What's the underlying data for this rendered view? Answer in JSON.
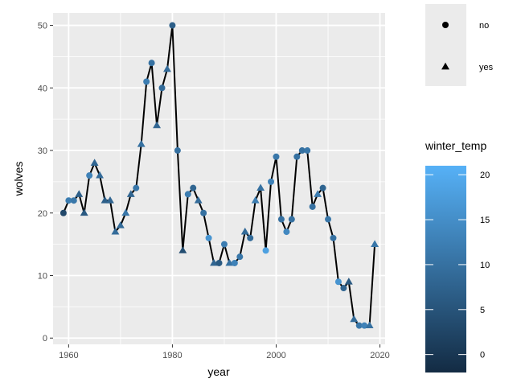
{
  "chart_data": {
    "type": "scatter",
    "xlabel": "year",
    "ylabel": "wolves",
    "xlim": [
      1957,
      2021
    ],
    "ylim": [
      -1,
      52
    ],
    "x_ticks": [
      1960,
      1980,
      2000,
      2020
    ],
    "y_ticks": [
      0,
      10,
      20,
      30,
      40,
      50
    ],
    "grid": true,
    "line_color": "#000000",
    "shape_legend": {
      "title": "",
      "position": "right",
      "entries": [
        {
          "key": "no",
          "label": "no",
          "shape": "circle"
        },
        {
          "key": "yes",
          "label": "yes",
          "shape": "triangle"
        }
      ]
    },
    "color_legend": {
      "title": "winter_temp",
      "position": "right",
      "range": [
        -2,
        21
      ],
      "ticks": [
        0,
        5,
        10,
        15,
        20
      ],
      "low_color": "#132B43",
      "high_color": "#56B1F7"
    },
    "points": [
      {
        "year": 1959,
        "wolves": 20,
        "temp": 3,
        "shape": "no"
      },
      {
        "year": 1960,
        "wolves": 22,
        "temp": 12,
        "shape": "no"
      },
      {
        "year": 1961,
        "wolves": 22,
        "temp": 11,
        "shape": "no"
      },
      {
        "year": 1962,
        "wolves": 23,
        "temp": 7,
        "shape": "yes"
      },
      {
        "year": 1963,
        "wolves": 20,
        "temp": 6,
        "shape": "yes"
      },
      {
        "year": 1964,
        "wolves": 26,
        "temp": 13,
        "shape": "no"
      },
      {
        "year": 1965,
        "wolves": 28,
        "temp": 8,
        "shape": "yes"
      },
      {
        "year": 1966,
        "wolves": 26,
        "temp": 9,
        "shape": "yes"
      },
      {
        "year": 1967,
        "wolves": 22,
        "temp": 7,
        "shape": "yes"
      },
      {
        "year": 1968,
        "wolves": 22,
        "temp": 8,
        "shape": "yes"
      },
      {
        "year": 1969,
        "wolves": 17,
        "temp": 9,
        "shape": "yes"
      },
      {
        "year": 1970,
        "wolves": 18,
        "temp": 9,
        "shape": "yes"
      },
      {
        "year": 1971,
        "wolves": 20,
        "temp": 11,
        "shape": "yes"
      },
      {
        "year": 1972,
        "wolves": 23,
        "temp": 8,
        "shape": "yes"
      },
      {
        "year": 1973,
        "wolves": 24,
        "temp": 11,
        "shape": "no"
      },
      {
        "year": 1974,
        "wolves": 31,
        "temp": 10,
        "shape": "yes"
      },
      {
        "year": 1975,
        "wolves": 41,
        "temp": 12,
        "shape": "no"
      },
      {
        "year": 1976,
        "wolves": 44,
        "temp": 10,
        "shape": "no"
      },
      {
        "year": 1977,
        "wolves": 34,
        "temp": 8,
        "shape": "yes"
      },
      {
        "year": 1978,
        "wolves": 40,
        "temp": 9,
        "shape": "no"
      },
      {
        "year": 1979,
        "wolves": 43,
        "temp": 9,
        "shape": "yes"
      },
      {
        "year": 1980,
        "wolves": 50,
        "temp": 7,
        "shape": "no"
      },
      {
        "year": 1981,
        "wolves": 30,
        "temp": 10,
        "shape": "no"
      },
      {
        "year": 1982,
        "wolves": 14,
        "temp": 4,
        "shape": "yes"
      },
      {
        "year": 1983,
        "wolves": 23,
        "temp": 12,
        "shape": "no"
      },
      {
        "year": 1984,
        "wolves": 24,
        "temp": 8,
        "shape": "no"
      },
      {
        "year": 1985,
        "wolves": 22,
        "temp": 9,
        "shape": "yes"
      },
      {
        "year": 1986,
        "wolves": 20,
        "temp": 10,
        "shape": "no"
      },
      {
        "year": 1987,
        "wolves": 16,
        "temp": 16,
        "shape": "no"
      },
      {
        "year": 1988,
        "wolves": 12,
        "temp": 8,
        "shape": "yes"
      },
      {
        "year": 1989,
        "wolves": 12,
        "temp": 6,
        "shape": "no"
      },
      {
        "year": 1990,
        "wolves": 15,
        "temp": 12,
        "shape": "no"
      },
      {
        "year": 1991,
        "wolves": 12,
        "temp": 10,
        "shape": "yes"
      },
      {
        "year": 1992,
        "wolves": 12,
        "temp": 13,
        "shape": "no"
      },
      {
        "year": 1993,
        "wolves": 13,
        "temp": 11,
        "shape": "no"
      },
      {
        "year": 1994,
        "wolves": 17,
        "temp": 9,
        "shape": "yes"
      },
      {
        "year": 1995,
        "wolves": 16,
        "temp": 9,
        "shape": "no"
      },
      {
        "year": 1996,
        "wolves": 22,
        "temp": 12,
        "shape": "yes"
      },
      {
        "year": 1997,
        "wolves": 24,
        "temp": 10,
        "shape": "yes"
      },
      {
        "year": 1998,
        "wolves": 14,
        "temp": 18,
        "shape": "no"
      },
      {
        "year": 1999,
        "wolves": 25,
        "temp": 13,
        "shape": "no"
      },
      {
        "year": 2000,
        "wolves": 29,
        "temp": 11,
        "shape": "no"
      },
      {
        "year": 2001,
        "wolves": 19,
        "temp": 10,
        "shape": "no"
      },
      {
        "year": 2002,
        "wolves": 17,
        "temp": 14,
        "shape": "no"
      },
      {
        "year": 2003,
        "wolves": 19,
        "temp": 10,
        "shape": "no"
      },
      {
        "year": 2004,
        "wolves": 29,
        "temp": 10,
        "shape": "no"
      },
      {
        "year": 2005,
        "wolves": 30,
        "temp": 10,
        "shape": "no"
      },
      {
        "year": 2006,
        "wolves": 30,
        "temp": 11,
        "shape": "no"
      },
      {
        "year": 2007,
        "wolves": 21,
        "temp": 10,
        "shape": "no"
      },
      {
        "year": 2008,
        "wolves": 23,
        "temp": 12,
        "shape": "yes"
      },
      {
        "year": 2009,
        "wolves": 24,
        "temp": 8,
        "shape": "no"
      },
      {
        "year": 2010,
        "wolves": 19,
        "temp": 11,
        "shape": "no"
      },
      {
        "year": 2011,
        "wolves": 16,
        "temp": 10,
        "shape": "no"
      },
      {
        "year": 2012,
        "wolves": 9,
        "temp": 16,
        "shape": "no"
      },
      {
        "year": 2013,
        "wolves": 8,
        "temp": 8,
        "shape": "no"
      },
      {
        "year": 2014,
        "wolves": 9,
        "temp": 6,
        "shape": "yes"
      },
      {
        "year": 2015,
        "wolves": 3,
        "temp": 9,
        "shape": "yes"
      },
      {
        "year": 2016,
        "wolves": 2,
        "temp": 11,
        "shape": "no"
      },
      {
        "year": 2017,
        "wolves": 2,
        "temp": 13,
        "shape": "no"
      },
      {
        "year": 2018,
        "wolves": 2,
        "temp": 10,
        "shape": "yes"
      },
      {
        "year": 2019,
        "wolves": 15,
        "temp": 11,
        "shape": "yes"
      }
    ]
  }
}
